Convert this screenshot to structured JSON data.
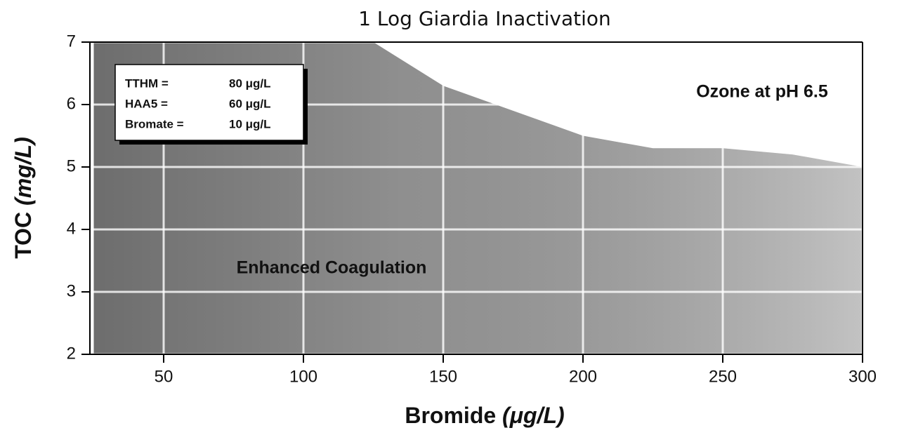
{
  "chart_data": {
    "type": "area",
    "title": "1 Log Giardia Inactivation",
    "x_label": "Bromide",
    "x_unit": "(μg/L)",
    "y_label": "TOC",
    "y_unit": "(mg/L)",
    "xlim": [
      25,
      300
    ],
    "ylim": [
      2,
      7
    ],
    "xticks": [
      50,
      100,
      150,
      200,
      250,
      300
    ],
    "yticks": [
      2,
      3,
      4,
      5,
      6,
      7
    ],
    "x": [
      25,
      125,
      150,
      175,
      200,
      225,
      250,
      275,
      300
    ],
    "values": [
      7,
      7,
      6.3,
      5.9,
      5.5,
      5.3,
      5.3,
      5.2,
      5.0
    ],
    "color": "#a8a8a8",
    "legend_box": [
      [
        "TTHM =",
        "80 μg/L"
      ],
      [
        "HAA5 =",
        "60 μg/L"
      ],
      [
        "Bromate =",
        "10 μg/L"
      ]
    ],
    "annotations": [
      "Ozone at pH 6.5",
      "Enhanced Coagulation"
    ]
  }
}
